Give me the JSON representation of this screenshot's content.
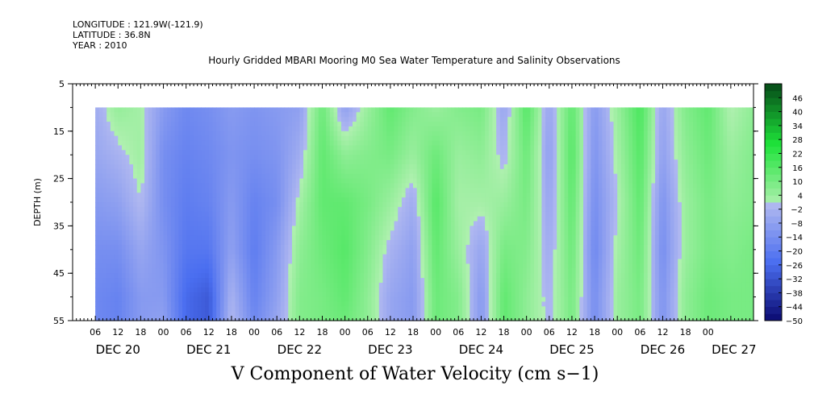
{
  "meta": {
    "longitude": "LONGITUDE : 121.9W(-121.9)",
    "latitude": "LATITUDE : 36.8N",
    "year": "YEAR : 2010"
  },
  "chart_data": {
    "type": "heatmap",
    "title": "Hourly Gridded MBARI Mooring M0 Sea Water Temperature and Salinity Observations",
    "xlabel": "V Component of Water Velocity (cm s−1)",
    "ylabel": "DEPTH (m)",
    "ylim": [
      5,
      55
    ],
    "y_reversed": true,
    "y_ticks": [
      "5",
      "15",
      "25",
      "35",
      "45",
      "55"
    ],
    "data_depth_range": [
      10,
      55
    ],
    "xlim_hours": [
      0,
      180
    ],
    "data_time_range_hours": [
      6,
      180
    ],
    "hour_ticks": [
      "06",
      "12",
      "18",
      "00",
      "06",
      "12",
      "18",
      "00",
      "06",
      "12",
      "18",
      "00",
      "06",
      "12",
      "18",
      "00",
      "06",
      "12",
      "18",
      "00",
      "06",
      "12",
      "18",
      "00",
      "06",
      "12",
      "18",
      "00"
    ],
    "date_labels": [
      "DEC 20",
      "DEC 21",
      "DEC 22",
      "DEC 23",
      "DEC 24",
      "DEC 25",
      "DEC 26",
      "DEC 27"
    ],
    "colorbar": {
      "ticks": [
        "46",
        "40",
        "34",
        "28",
        "22",
        "16",
        "10",
        "4",
        "−2",
        "−8",
        "−14",
        "−20",
        "−26",
        "−32",
        "−38",
        "−44",
        "−50"
      ],
      "min": -50,
      "max": 52,
      "step": 3,
      "negative_colors": [
        "#0a0a70",
        "#4a6ef0",
        "#b0b8f0"
      ],
      "positive_colors": [
        "#b0f0b0",
        "#1ee33a",
        "#064a18"
      ]
    },
    "field": {
      "time_hours": [
        6,
        12,
        18,
        24,
        30,
        36,
        42,
        48,
        54,
        60,
        66,
        72,
        78,
        84,
        90,
        96,
        102,
        108,
        114,
        120,
        126,
        132,
        138,
        144,
        150,
        156,
        162,
        168,
        174,
        180
      ],
      "depth_m": [
        10,
        20,
        30,
        40,
        50,
        55
      ],
      "values": [
        [
          -4,
          -6,
          -10,
          -14,
          -16,
          -16
        ],
        [
          5,
          -2,
          -8,
          -14,
          -18,
          -18
        ],
        [
          2,
          3,
          0,
          -6,
          -10,
          -10
        ],
        [
          -10,
          -14,
          -14,
          -12,
          -10,
          -8
        ],
        [
          -16,
          -18,
          -20,
          -22,
          -26,
          -26
        ],
        [
          -14,
          -16,
          -18,
          -22,
          -30,
          -30
        ],
        [
          -10,
          -12,
          -10,
          -8,
          -2,
          0
        ],
        [
          -12,
          -14,
          -18,
          -20,
          -18,
          -16
        ],
        [
          -10,
          -12,
          -14,
          -10,
          -8,
          -6
        ],
        [
          -8,
          -4,
          2,
          6,
          8,
          8
        ],
        [
          12,
          14,
          14,
          12,
          10,
          10
        ],
        [
          -8,
          6,
          14,
          16,
          14,
          12
        ],
        [
          4,
          8,
          10,
          8,
          6,
          6
        ],
        [
          14,
          10,
          4,
          -2,
          -6,
          -6
        ],
        [
          8,
          4,
          -4,
          -8,
          -10,
          -10
        ],
        [
          4,
          12,
          16,
          14,
          12,
          12
        ],
        [
          8,
          4,
          2,
          4,
          8,
          8
        ],
        [
          10,
          6,
          2,
          -6,
          -10,
          -10
        ],
        [
          -6,
          -2,
          4,
          10,
          14,
          14
        ],
        [
          16,
          12,
          10,
          8,
          6,
          6
        ],
        [
          -6,
          -8,
          -6,
          -4,
          -2,
          -2
        ],
        [
          14,
          16,
          14,
          12,
          10,
          10
        ],
        [
          -10,
          -12,
          -14,
          -16,
          -14,
          -14
        ],
        [
          4,
          2,
          0,
          2,
          4,
          4
        ],
        [
          18,
          16,
          14,
          12,
          10,
          10
        ],
        [
          -6,
          -8,
          -12,
          -14,
          -12,
          -12
        ],
        [
          8,
          6,
          4,
          4,
          6,
          6
        ],
        [
          14,
          12,
          10,
          10,
          12,
          12
        ],
        [
          0,
          4,
          6,
          8,
          10,
          10
        ],
        [
          6,
          8,
          8,
          10,
          10,
          10
        ]
      ]
    }
  }
}
